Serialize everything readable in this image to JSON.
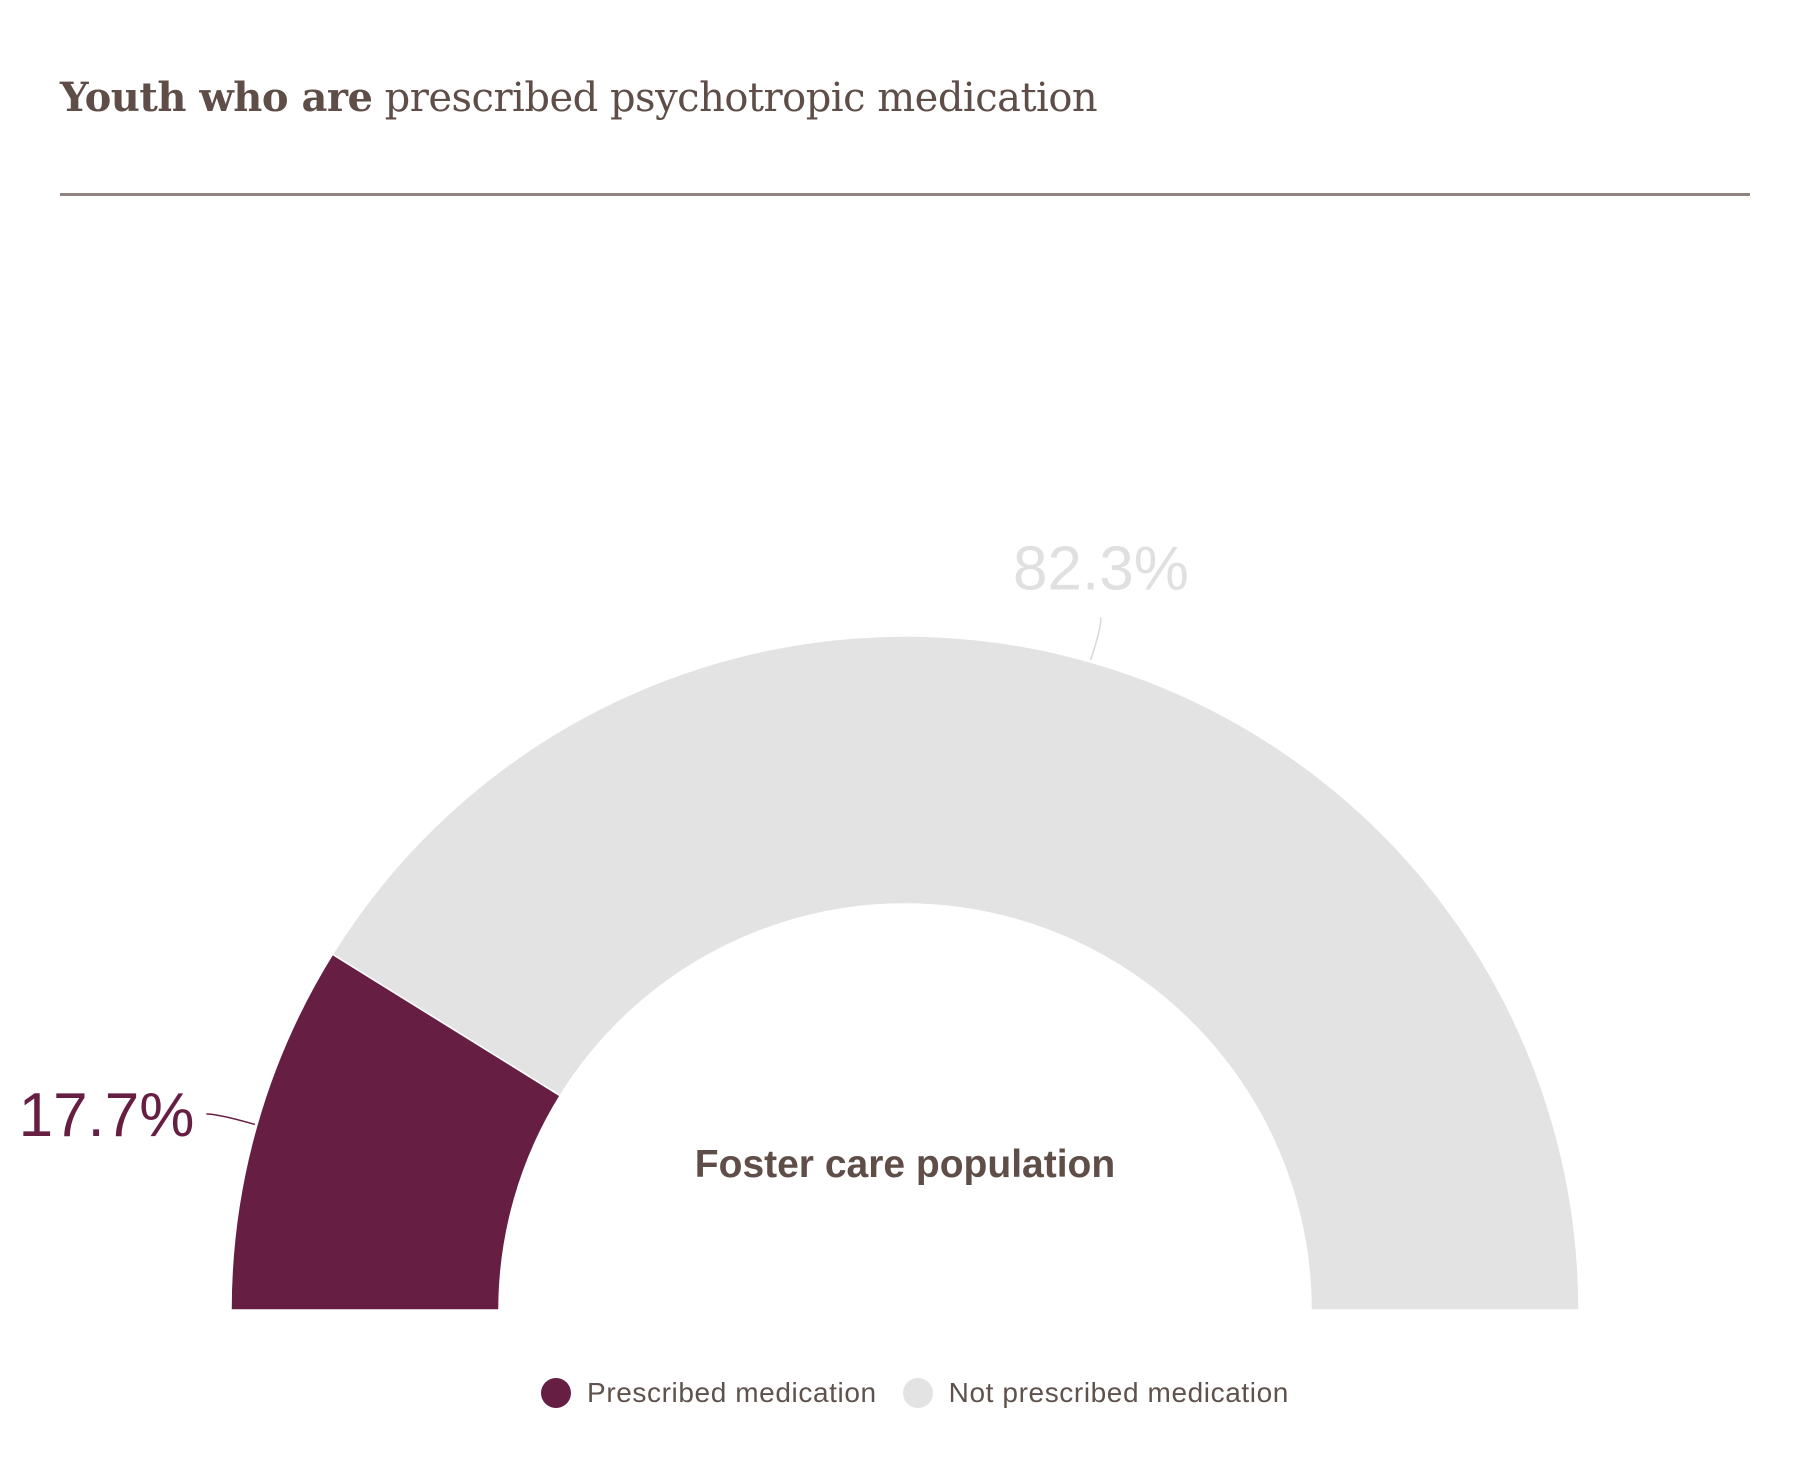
{
  "title": {
    "bold": "Youth who are",
    "regular": "prescribed psychotropic medication"
  },
  "center_label": "Foster care population",
  "colors": {
    "prescribed": "#661f43",
    "not_prescribed": "#e4e3e3",
    "text": "#5f4e48"
  },
  "legend": [
    {
      "label": "Prescribed medication",
      "color": "#661f43"
    },
    {
      "label": "Not prescribed medication",
      "color": "#e4e3e3"
    }
  ],
  "chart_data": {
    "type": "pie",
    "variant": "semi-donut",
    "title": "Youth who are prescribed psychotropic medication",
    "center_label": "Foster care population",
    "slices": [
      {
        "name": "Prescribed medication",
        "value": 17.7,
        "label": "17.7%",
        "color": "#661f43"
      },
      {
        "name": "Not prescribed medication",
        "value": 82.3,
        "label": "82.3%",
        "color": "#e4e3e3"
      }
    ],
    "legend": "bottom-center"
  }
}
